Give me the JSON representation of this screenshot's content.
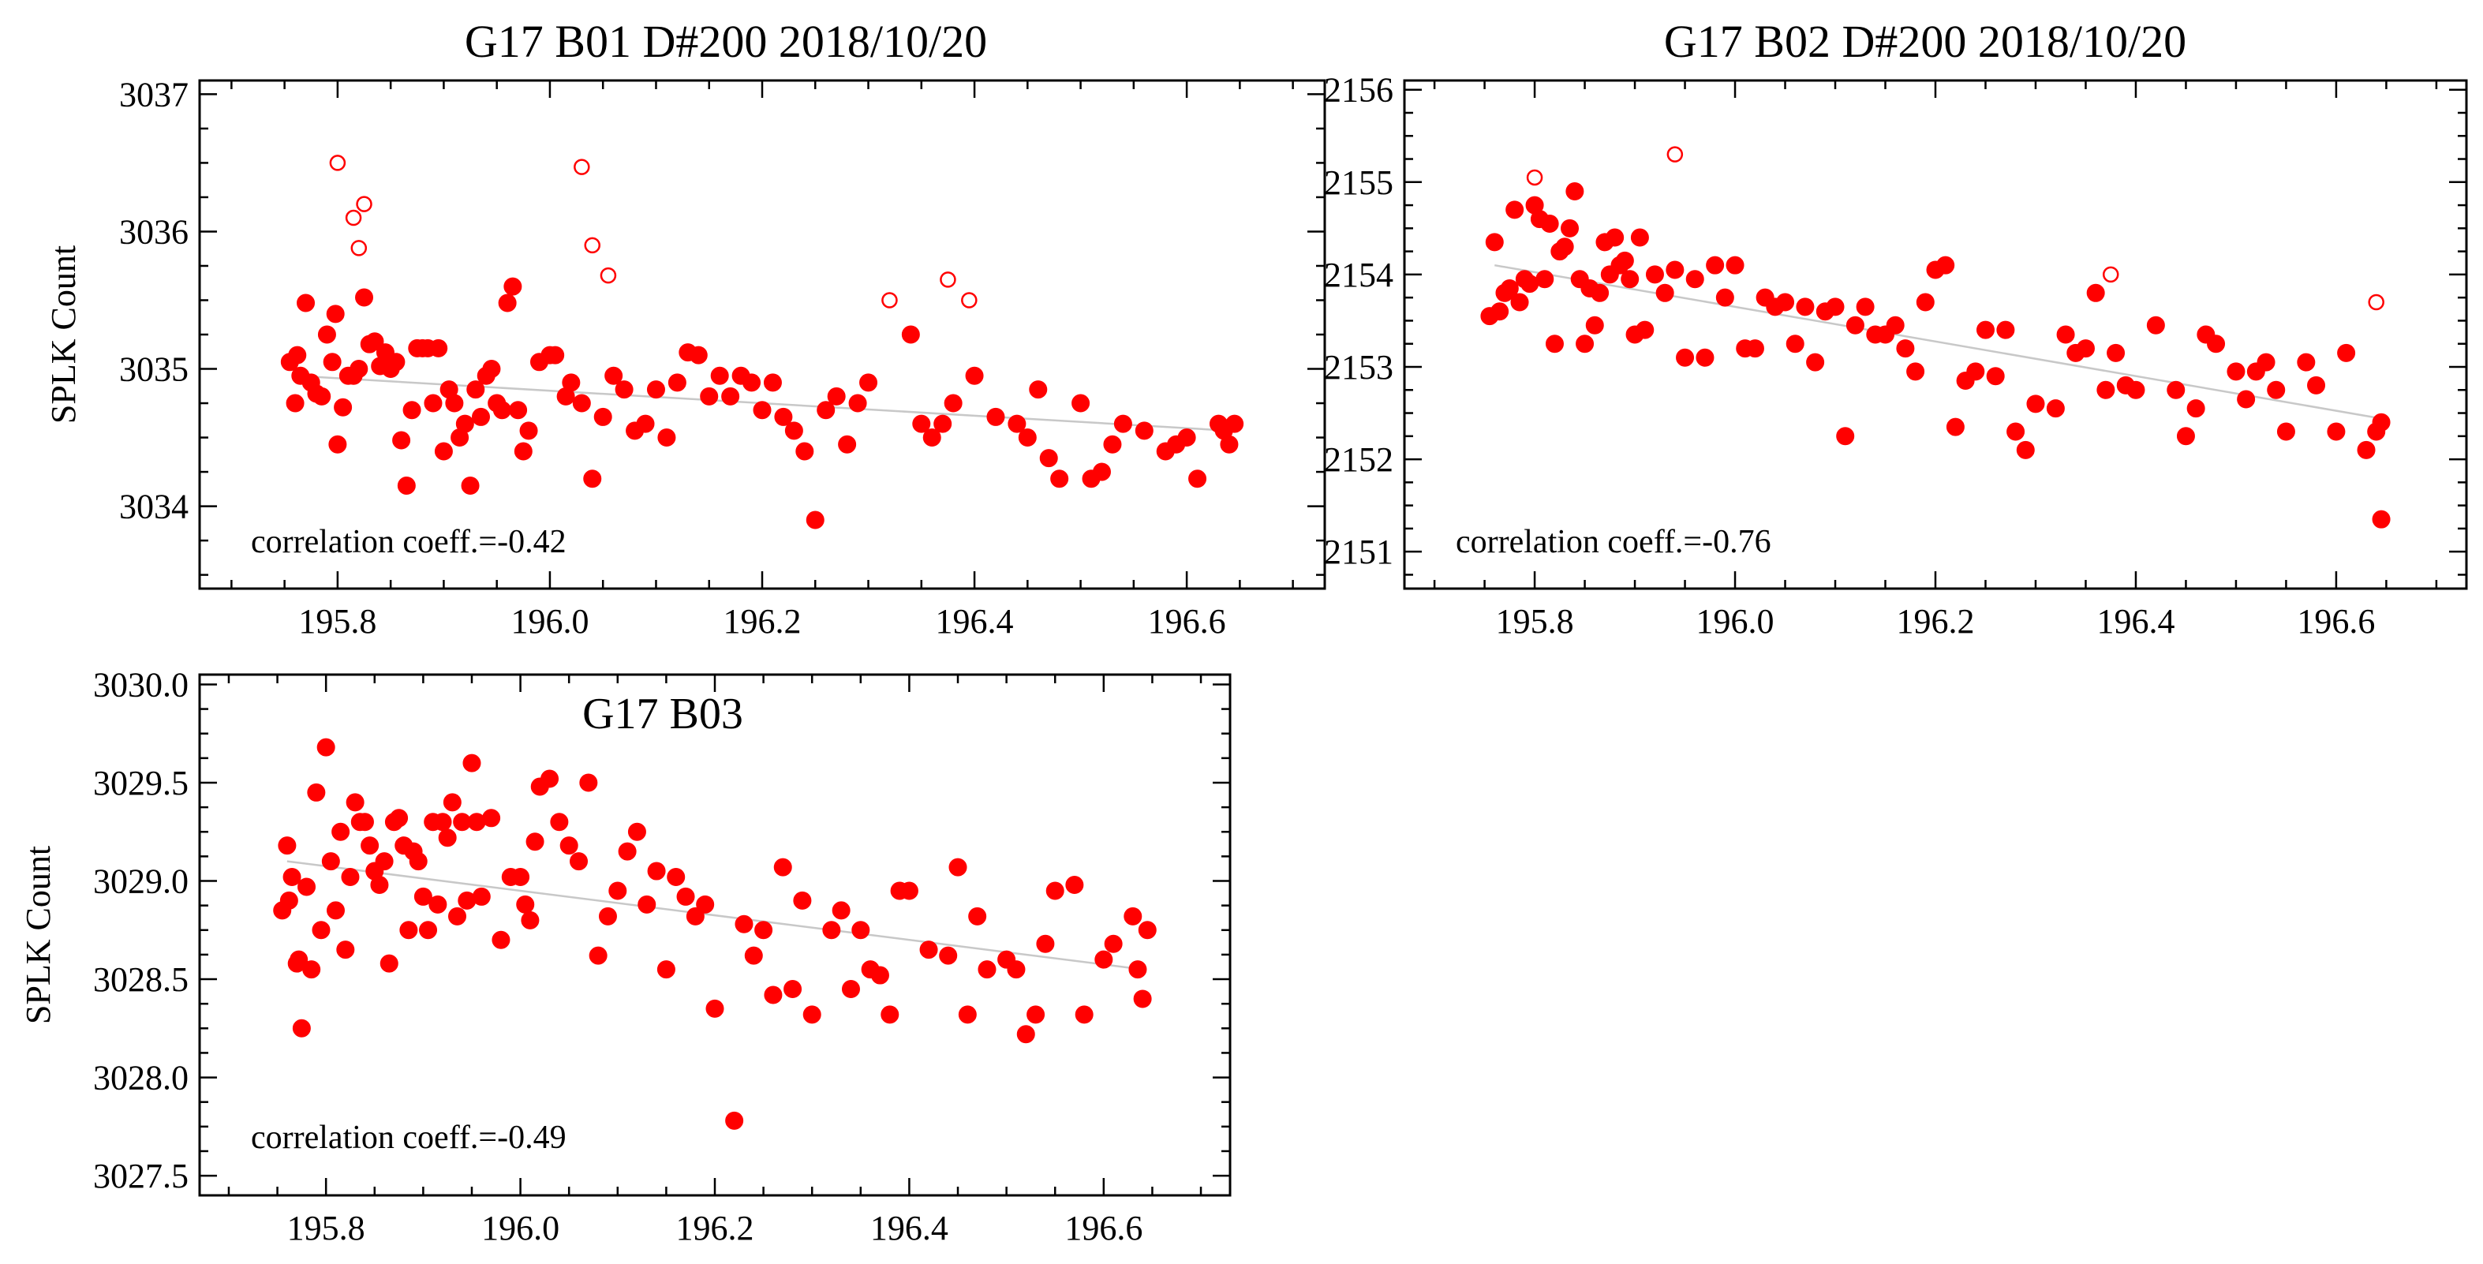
{
  "chart_data": [
    {
      "type": "scatter",
      "title": "G17 B01 D#200 2018/10/20",
      "ylabel": "SPLK Count",
      "xlabel": "",
      "xlim": [
        195.67,
        196.73
      ],
      "ylim": [
        3033.4,
        3037.1
      ],
      "xticks": [
        195.8,
        196.0,
        196.2,
        196.4,
        196.6
      ],
      "xtick_labels": [
        "195.8",
        "196.0",
        "196.2",
        "196.4",
        "196.6"
      ],
      "xminor": 0.05,
      "yticks": [
        3034,
        3035,
        3036,
        3037
      ],
      "ytick_labels": [
        "3034",
        "3035",
        "3036",
        "3037"
      ],
      "yminor": 0.25,
      "annotation": "correlation coeff.=-0.42",
      "marker_color": "#ff0000",
      "trend_color": "#c8c8c8",
      "trend": {
        "x": [
          195.76,
          196.64
        ],
        "y": [
          3034.95,
          3034.55
        ]
      },
      "series": [
        {
          "name": "points",
          "marker": "filled",
          "x": [
            195.755,
            195.76,
            195.762,
            195.765,
            195.77,
            195.775,
            195.78,
            195.785,
            195.79,
            195.795,
            195.798,
            195.8,
            195.805,
            195.81,
            195.815,
            195.82,
            195.825,
            195.83,
            195.835,
            195.84,
            195.845,
            195.85,
            195.855,
            195.86,
            195.865,
            195.87,
            195.875,
            195.88,
            195.885,
            195.89,
            195.895,
            195.9,
            195.905,
            195.91,
            195.915,
            195.92,
            195.925,
            195.93,
            195.935,
            195.94,
            195.945,
            195.95,
            195.955,
            195.96,
            195.965,
            195.97,
            195.975,
            195.98,
            195.99,
            196.0,
            196.005,
            196.015,
            196.02,
            196.03,
            196.04,
            196.05,
            196.06,
            196.07,
            196.08,
            196.09,
            196.1,
            196.11,
            196.12,
            196.13,
            196.14,
            196.15,
            196.16,
            196.17,
            196.18,
            196.19,
            196.2,
            196.21,
            196.22,
            196.23,
            196.24,
            196.25,
            196.26,
            196.27,
            196.28,
            196.29,
            196.3,
            196.34,
            196.35,
            196.36,
            196.37,
            196.38,
            196.4,
            196.42,
            196.44,
            196.45,
            196.46,
            196.47,
            196.48,
            196.5,
            196.51,
            196.52,
            196.53,
            196.54,
            196.56,
            196.58,
            196.59,
            196.6,
            196.61,
            196.63,
            196.635,
            196.64,
            196.645
          ],
          "y": [
            3035.05,
            3034.75,
            3035.1,
            3034.95,
            3035.48,
            3034.9,
            3034.82,
            3034.8,
            3035.25,
            3035.05,
            3035.4,
            3034.45,
            3034.72,
            3034.95,
            3034.95,
            3035.0,
            3035.52,
            3035.18,
            3035.2,
            3035.02,
            3035.12,
            3035.0,
            3035.05,
            3034.48,
            3034.15,
            3034.7,
            3035.15,
            3035.15,
            3035.15,
            3034.75,
            3035.15,
            3034.4,
            3034.85,
            3034.75,
            3034.5,
            3034.6,
            3034.15,
            3034.85,
            3034.65,
            3034.95,
            3035.0,
            3034.75,
            3034.7,
            3035.48,
            3035.6,
            3034.7,
            3034.4,
            3034.55,
            3035.05,
            3035.1,
            3035.1,
            3034.8,
            3034.9,
            3034.75,
            3034.2,
            3034.65,
            3034.95,
            3034.85,
            3034.55,
            3034.6,
            3034.85,
            3034.5,
            3034.9,
            3035.12,
            3035.1,
            3034.8,
            3034.95,
            3034.8,
            3034.95,
            3034.9,
            3034.7,
            3034.9,
            3034.65,
            3034.55,
            3034.4,
            3033.9,
            3034.7,
            3034.8,
            3034.45,
            3034.75,
            3034.9,
            3035.25,
            3034.6,
            3034.5,
            3034.6,
            3034.75,
            3034.95,
            3034.65,
            3034.6,
            3034.5,
            3034.85,
            3034.35,
            3034.2,
            3034.75,
            3034.2,
            3034.25,
            3034.45,
            3034.6,
            3034.55,
            3034.4,
            3034.45,
            3034.5,
            3034.2,
            3034.6,
            3034.55,
            3034.45,
            3034.6
          ],
          "x_note": "values read approximately from the plot"
        },
        {
          "name": "outliers",
          "marker": "open",
          "x": [
            195.8,
            195.815,
            195.82,
            195.825,
            196.03,
            196.04,
            196.055,
            196.32,
            196.375,
            196.395
          ],
          "y": [
            3036.5,
            3036.1,
            3035.88,
            3036.2,
            3036.47,
            3035.9,
            3035.68,
            3035.5,
            3035.65,
            3035.5
          ]
        }
      ]
    },
    {
      "type": "scatter",
      "title": "G17 B02 D#200 2018/10/20",
      "ylabel": "",
      "xlabel": "",
      "xlim": [
        195.67,
        196.73
      ],
      "ylim": [
        2150.6,
        2156.1
      ],
      "xticks": [
        195.8,
        196.0,
        196.2,
        196.4,
        196.6
      ],
      "xtick_labels": [
        "195.8",
        "196.0",
        "196.2",
        "196.4",
        "196.6"
      ],
      "xminor": 0.05,
      "yticks": [
        2151,
        2152,
        2153,
        2154,
        2155,
        2156
      ],
      "ytick_labels": [
        "2151",
        "2152",
        "2153",
        "2154",
        "2155",
        "2156"
      ],
      "yminor": 0.25,
      "annotation": "correlation coeff.=-0.76",
      "marker_color": "#ff0000",
      "trend_color": "#c8c8c8",
      "trend": {
        "x": [
          195.76,
          196.64
        ],
        "y": [
          2154.1,
          2152.45
        ]
      },
      "series": [
        {
          "name": "points",
          "marker": "filled",
          "x": [
            195.755,
            195.76,
            195.765,
            195.77,
            195.775,
            195.78,
            195.785,
            195.79,
            195.795,
            195.8,
            195.805,
            195.81,
            195.815,
            195.82,
            195.825,
            195.83,
            195.835,
            195.84,
            195.845,
            195.85,
            195.855,
            195.86,
            195.865,
            195.87,
            195.875,
            195.88,
            195.885,
            195.89,
            195.895,
            195.9,
            195.905,
            195.91,
            195.92,
            195.93,
            195.94,
            195.95,
            195.96,
            195.97,
            195.98,
            195.99,
            196.0,
            196.01,
            196.02,
            196.03,
            196.04,
            196.05,
            196.06,
            196.07,
            196.08,
            196.09,
            196.1,
            196.11,
            196.12,
            196.13,
            196.14,
            196.15,
            196.16,
            196.17,
            196.18,
            196.19,
            196.2,
            196.21,
            196.22,
            196.23,
            196.24,
            196.25,
            196.26,
            196.27,
            196.28,
            196.29,
            196.3,
            196.32,
            196.33,
            196.34,
            196.35,
            196.36,
            196.37,
            196.38,
            196.39,
            196.4,
            196.42,
            196.44,
            196.45,
            196.46,
            196.47,
            196.48,
            196.5,
            196.51,
            196.52,
            196.53,
            196.54,
            196.55,
            196.57,
            196.58,
            196.6,
            196.61,
            196.63,
            196.64,
            196.645
          ],
          "y": [
            2153.55,
            2154.35,
            2153.6,
            2153.8,
            2153.85,
            2154.7,
            2153.7,
            2153.95,
            2153.9,
            2154.75,
            2154.6,
            2153.95,
            2154.55,
            2153.25,
            2154.25,
            2154.3,
            2154.5,
            2154.9,
            2153.95,
            2153.25,
            2153.85,
            2153.45,
            2153.8,
            2154.35,
            2154.0,
            2154.4,
            2154.1,
            2154.15,
            2153.95,
            2153.35,
            2154.4,
            2153.4,
            2154.0,
            2153.8,
            2154.05,
            2153.1,
            2153.95,
            2153.1,
            2154.1,
            2153.75,
            2154.1,
            2153.2,
            2153.2,
            2153.75,
            2153.65,
            2153.7,
            2153.25,
            2153.65,
            2153.05,
            2153.6,
            2153.65,
            2152.25,
            2153.45,
            2153.65,
            2153.35,
            2153.35,
            2153.45,
            2153.2,
            2152.95,
            2153.7,
            2154.05,
            2154.1,
            2152.35,
            2152.85,
            2152.95,
            2153.4,
            2152.9,
            2153.4,
            2152.3,
            2152.1,
            2152.6,
            2152.55,
            2153.35,
            2153.15,
            2153.2,
            2153.8,
            2152.75,
            2153.15,
            2152.8,
            2152.75,
            2153.45,
            2152.75,
            2152.25,
            2152.55,
            2153.35,
            2153.25,
            2152.95,
            2152.65,
            2152.95,
            2153.05,
            2152.75,
            2152.3,
            2153.05,
            2152.8,
            2152.3,
            2153.15,
            2152.1,
            2152.3,
            2152.4
          ],
          "x_note": "values read approximately from the plot"
        },
        {
          "name": "outliers",
          "marker": "open",
          "x": [
            195.8,
            195.94,
            196.375,
            196.64
          ],
          "y": [
            2155.05,
            2155.3,
            2154.0,
            2153.7
          ]
        },
        {
          "name": "low-point",
          "marker": "filled",
          "x": [
            196.645
          ],
          "y": [
            2151.35
          ]
        }
      ]
    },
    {
      "type": "scatter",
      "title": "G17 B03",
      "ylabel": "SPLK Count",
      "xlabel": "",
      "xlim": [
        195.67,
        196.73
      ],
      "ylim": [
        3027.4,
        3030.05
      ],
      "xticks": [
        195.8,
        196.0,
        196.2,
        196.4,
        196.6
      ],
      "xtick_labels": [
        "195.8",
        "196.0",
        "196.2",
        "196.4",
        "196.6"
      ],
      "xminor": 0.05,
      "yticks": [
        3027.5,
        3028.0,
        3028.5,
        3029.0,
        3029.5,
        3030.0
      ],
      "ytick_labels": [
        "3027.5",
        "3028.0",
        "3028.5",
        "3029.0",
        "3029.5",
        "3030.0"
      ],
      "yminor": 0.125,
      "annotation": "correlation coeff.=-0.49",
      "marker_color": "#ff0000",
      "trend_color": "#c8c8c8",
      "trend": {
        "x": [
          195.76,
          196.64
        ],
        "y": [
          3029.1,
          3028.55
        ]
      },
      "series": [
        {
          "name": "points",
          "marker": "filled",
          "x": [
            195.755,
            195.76,
            195.762,
            195.765,
            195.77,
            195.772,
            195.775,
            195.78,
            195.785,
            195.79,
            195.795,
            195.8,
            195.805,
            195.81,
            195.815,
            195.82,
            195.825,
            195.83,
            195.835,
            195.84,
            195.845,
            195.85,
            195.855,
            195.86,
            195.865,
            195.87,
            195.875,
            195.88,
            195.885,
            195.89,
            195.895,
            195.9,
            195.905,
            195.91,
            195.915,
            195.92,
            195.925,
            195.93,
            195.935,
            195.94,
            195.945,
            195.95,
            195.955,
            195.96,
            195.97,
            195.98,
            195.99,
            196.0,
            196.005,
            196.01,
            196.015,
            196.02,
            196.03,
            196.04,
            196.05,
            196.06,
            196.07,
            196.08,
            196.09,
            196.1,
            196.11,
            196.12,
            196.13,
            196.14,
            196.15,
            196.16,
            196.17,
            196.18,
            196.19,
            196.2,
            196.22,
            196.23,
            196.24,
            196.25,
            196.26,
            196.27,
            196.28,
            196.29,
            196.3,
            196.32,
            196.33,
            196.34,
            196.35,
            196.36,
            196.37,
            196.38,
            196.39,
            196.4,
            196.42,
            196.44,
            196.45,
            196.46,
            196.47,
            196.48,
            196.5,
            196.51,
            196.52,
            196.53,
            196.54,
            196.55,
            196.57,
            196.58,
            196.6,
            196.61,
            196.63,
            196.635,
            196.64,
            196.645
          ],
          "y": [
            3028.85,
            3029.18,
            3028.9,
            3029.02,
            3028.58,
            3028.6,
            3028.25,
            3028.97,
            3028.55,
            3029.45,
            3028.75,
            3029.68,
            3029.1,
            3028.85,
            3029.25,
            3028.65,
            3029.02,
            3029.4,
            3029.3,
            3029.3,
            3029.18,
            3029.05,
            3028.98,
            3029.1,
            3028.58,
            3029.3,
            3029.32,
            3029.18,
            3028.75,
            3029.15,
            3029.1,
            3028.92,
            3028.75,
            3029.3,
            3028.88,
            3029.3,
            3029.22,
            3029.4,
            3028.82,
            3029.3,
            3028.9,
            3029.6,
            3029.3,
            3028.92,
            3029.32,
            3028.7,
            3029.02,
            3029.02,
            3028.88,
            3028.8,
            3029.2,
            3029.48,
            3029.52,
            3029.3,
            3029.18,
            3029.1,
            3029.5,
            3028.62,
            3028.82,
            3028.95,
            3029.15,
            3029.25,
            3028.88,
            3029.05,
            3028.55,
            3029.02,
            3028.92,
            3028.82,
            3028.88,
            3028.35,
            3027.78,
            3028.78,
            3028.62,
            3028.75,
            3028.42,
            3029.07,
            3028.45,
            3028.9,
            3028.32,
            3028.75,
            3028.85,
            3028.45,
            3028.75,
            3028.55,
            3028.52,
            3028.32,
            3028.95,
            3028.95,
            3028.65,
            3028.62,
            3029.07,
            3028.32,
            3028.82,
            3028.55,
            3028.6,
            3028.55,
            3028.22,
            3028.32,
            3028.68,
            3028.95,
            3028.98,
            3028.32,
            3028.6,
            3028.68,
            3028.82,
            3028.55,
            3028.4,
            3028.75
          ],
          "x_note": "values read approximately from the plot"
        }
      ]
    }
  ]
}
